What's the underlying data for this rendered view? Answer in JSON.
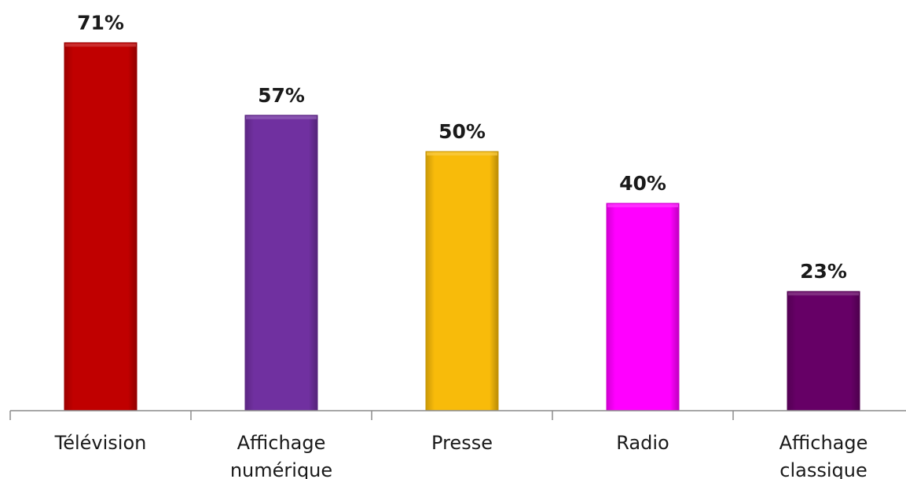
{
  "chart_data": {
    "type": "bar",
    "categories": [
      [
        "Télévision"
      ],
      [
        "Affichage",
        "numérique"
      ],
      [
        "Presse"
      ],
      [
        "Radio"
      ],
      [
        "Affichage",
        "classique"
      ]
    ],
    "values": [
      71,
      57,
      50,
      40,
      23
    ],
    "value_labels": [
      "71%",
      "57%",
      "50%",
      "40%",
      "23%"
    ],
    "colors": [
      "#c00000",
      "#7030a0",
      "#f8bb0a",
      "#ff00ff",
      "#660066"
    ],
    "title": "",
    "xlabel": "",
    "ylabel": "",
    "ylim": [
      0,
      80
    ],
    "grid": false,
    "legend": "none"
  }
}
